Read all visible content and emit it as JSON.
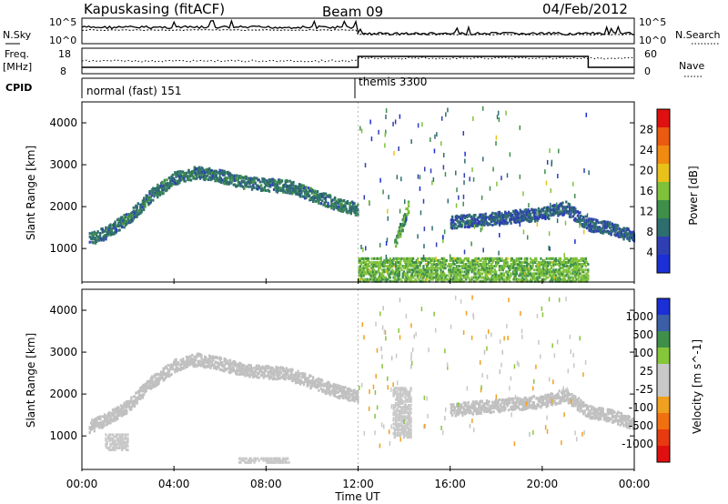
{
  "header": {
    "station": "Kapuskasing (fitACF)",
    "beam": "Beam 09",
    "date": "04/Feb/2012"
  },
  "top_panels": {
    "nsky_label": "N.Sky",
    "nsky_ticks": [
      "10^5",
      "10^0"
    ],
    "nsearch_label": "N.Search",
    "nsearch_ticks": [
      "10^5",
      "10^0"
    ],
    "freq_label_1": "Freq.",
    "freq_label_2": "[MHz]",
    "freq_ticks": [
      "18",
      "8"
    ],
    "nave_label": "Nave",
    "nave_ticks": [
      "60",
      "0"
    ],
    "cpid_label": "CPID",
    "cpid_modes": [
      {
        "label": "normal (fast) 151",
        "start_hour": 0
      },
      {
        "label": "themis 3300",
        "start_hour": 12
      }
    ]
  },
  "colors": {
    "power_scale": [
      "#1a2fd6",
      "#2f3fb3",
      "#2e6e6e",
      "#3f8f4a",
      "#7fc23a",
      "#e8c21a",
      "#f08a10",
      "#ea5a10",
      "#e01010"
    ],
    "velocity_scale": [
      "#1a2fd6",
      "#3a5fa8",
      "#3f8f4a",
      "#86c63a",
      "#c8c8c8",
      "#c8c8c8",
      "#f0a020",
      "#f07010",
      "#e83a10",
      "#e01010"
    ],
    "ground_scatter": "#c0c0c0"
  },
  "chart_data": [
    {
      "type": "heatmap",
      "title": "",
      "xlabel": "Time UT",
      "ylabel": "Slant Range [km]",
      "x_ticks": [
        "00:00",
        "04:00",
        "08:00",
        "12:00",
        "16:00",
        "20:00",
        "00:00"
      ],
      "y_ticks": [
        "1000",
        "2000",
        "3000",
        "4000"
      ],
      "xlim": [
        0,
        24
      ],
      "ylim": [
        200,
        4500
      ],
      "colorbar": {
        "label": "Power [dB]",
        "ticks": [
          "4",
          "8",
          "12",
          "16",
          "20",
          "24",
          "28"
        ],
        "range": [
          0,
          30
        ]
      },
      "features": [
        {
          "name": "arc",
          "points": [
            [
              0.3,
              1250
            ],
            [
              1,
              1400
            ],
            [
              2,
              1750
            ],
            [
              3,
              2300
            ],
            [
              4,
              2700
            ],
            [
              5,
              2850
            ],
            [
              6,
              2750
            ],
            [
              7,
              2600
            ],
            [
              8,
              2550
            ],
            [
              9,
              2500
            ],
            [
              10,
              2300
            ],
            [
              11,
              2100
            ],
            [
              12,
              1950
            ]
          ],
          "power": 8
        },
        {
          "name": "late_band",
          "points": [
            [
              16,
              1650
            ],
            [
              18,
              1750
            ],
            [
              20,
              1850
            ],
            [
              21,
              2000
            ],
            [
              22,
              1600
            ],
            [
              23,
              1500
            ],
            [
              24,
              1300
            ]
          ],
          "power": 6
        },
        {
          "name": "near_range_after_12",
          "x_range": [
            12,
            22
          ],
          "y_range": [
            250,
            800
          ],
          "power": 14
        },
        {
          "name": "patch_14h",
          "points": [
            [
              13.6,
              1200
            ],
            [
              13.9,
              1600
            ],
            [
              14.2,
              2100
            ]
          ],
          "power": 12
        }
      ]
    },
    {
      "type": "heatmap",
      "title": "",
      "xlabel": "Time UT",
      "ylabel": "Slant Range [km]",
      "x_ticks": [
        "00:00",
        "04:00",
        "08:00",
        "12:00",
        "16:00",
        "20:00",
        "00:00"
      ],
      "y_ticks": [
        "1000",
        "2000",
        "3000",
        "4000"
      ],
      "xlim": [
        0,
        24
      ],
      "ylim": [
        200,
        4500
      ],
      "colorbar": {
        "label": "Velocity [m s^-1]",
        "ticks": [
          "1000",
          "500",
          "100",
          "25",
          "-25",
          "-100",
          "-500",
          "-1000"
        ],
        "range": [
          -1000,
          1000
        ]
      },
      "features": [
        {
          "name": "ground_arc",
          "points": [
            [
              0.3,
              1250
            ],
            [
              1,
              1400
            ],
            [
              2,
              1750
            ],
            [
              3,
              2300
            ],
            [
              4,
              2700
            ],
            [
              5,
              2850
            ],
            [
              6,
              2750
            ],
            [
              7,
              2600
            ],
            [
              8,
              2550
            ],
            [
              9,
              2500
            ],
            [
              10,
              2300
            ],
            [
              11,
              2100
            ],
            [
              12,
              1950
            ]
          ],
          "velocity": 0
        },
        {
          "name": "late_band",
          "points": [
            [
              16,
              1650
            ],
            [
              18,
              1750
            ],
            [
              20,
              1850
            ],
            [
              21,
              2000
            ],
            [
              22,
              1600
            ],
            [
              23,
              1500
            ],
            [
              24,
              1300
            ]
          ],
          "velocity": 0
        },
        {
          "name": "orange_patch_1h",
          "x_range": [
            1.0,
            2.0
          ],
          "y_range": [
            700,
            1100
          ],
          "velocity": -150
        },
        {
          "name": "orange_patch_14h",
          "x_range": [
            13.5,
            14.3
          ],
          "y_range": [
            1000,
            2200
          ],
          "velocity": -150
        },
        {
          "name": "green_7h",
          "x_range": [
            6.8,
            9.0
          ],
          "y_range": [
            400,
            520
          ],
          "velocity": 150
        }
      ]
    }
  ]
}
